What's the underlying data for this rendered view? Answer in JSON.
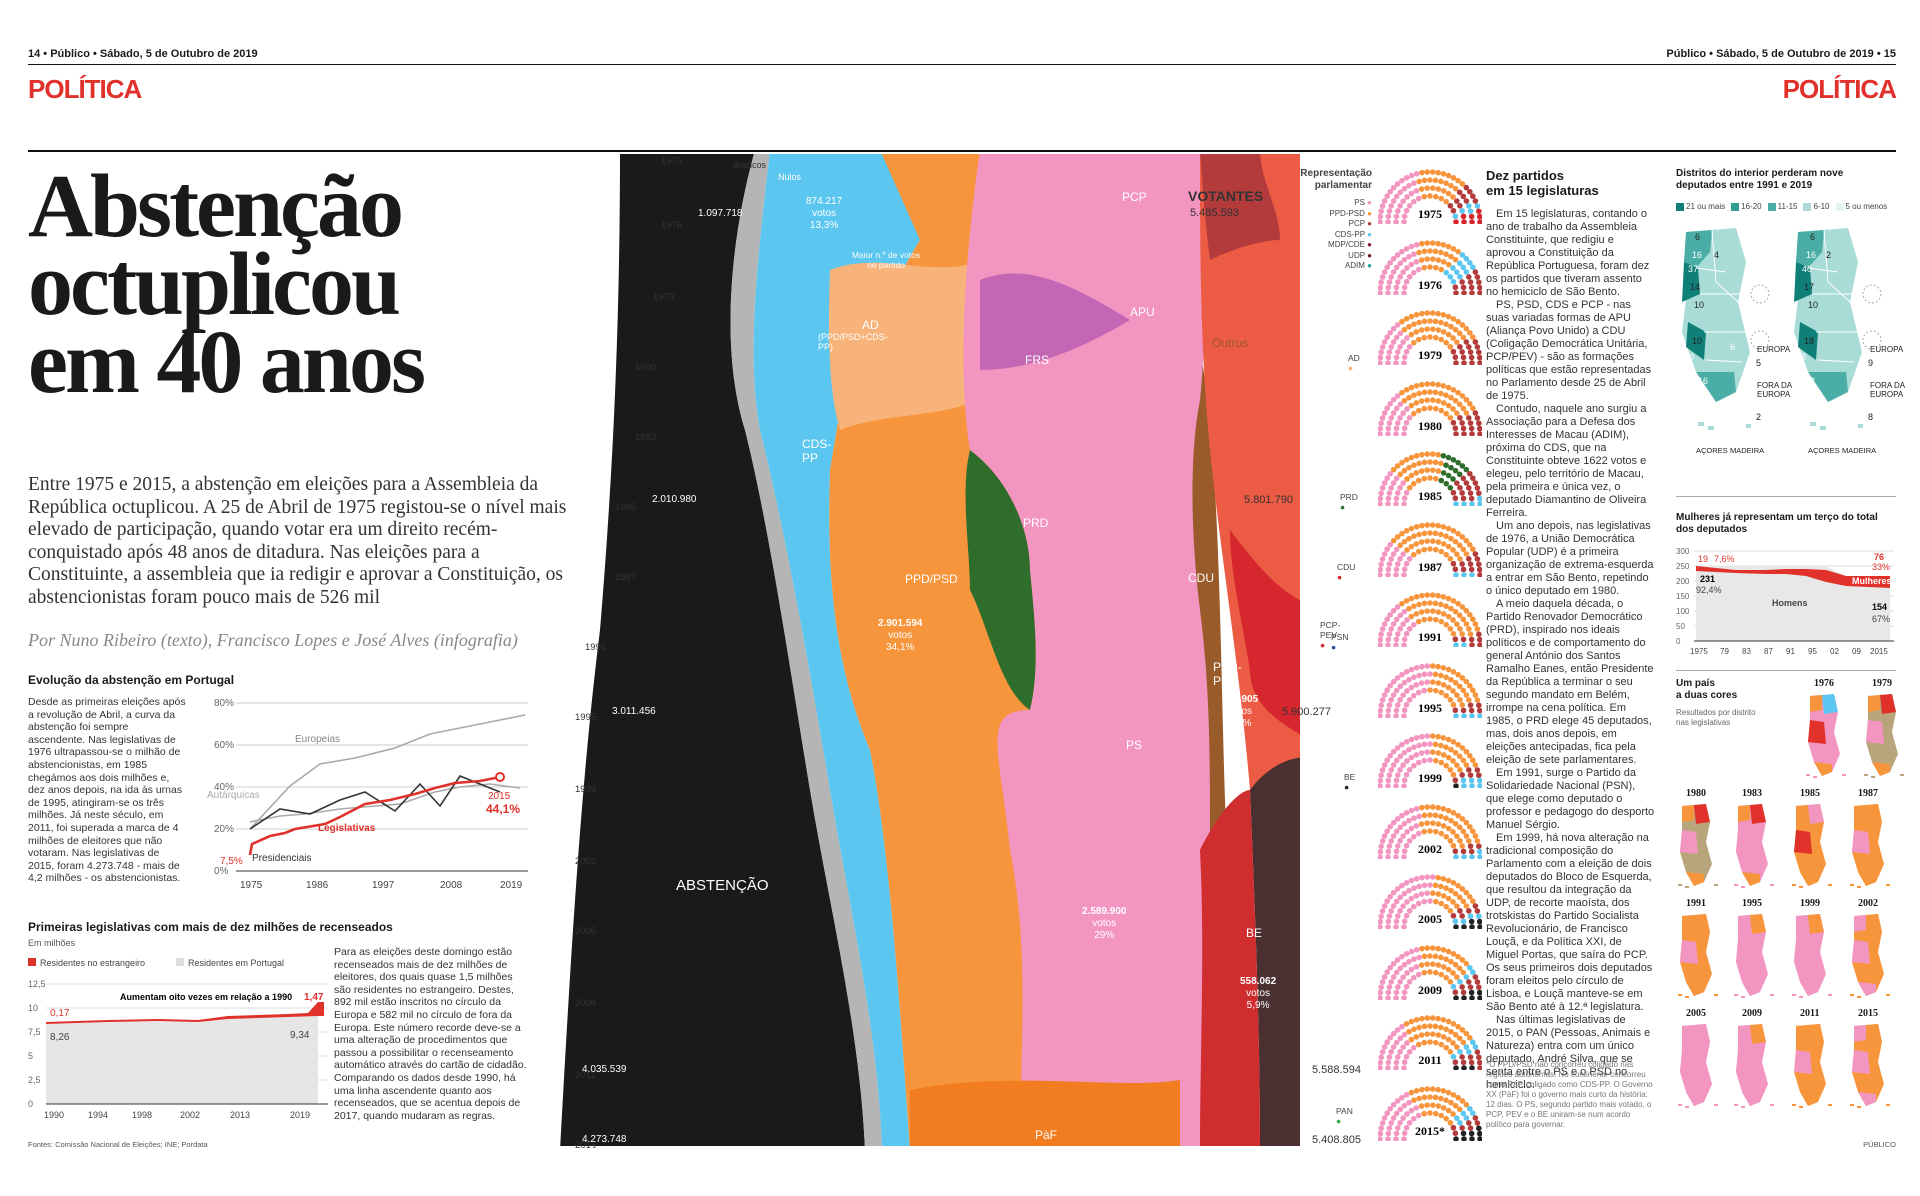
{
  "header": {
    "left": "14 • Público • Sábado, 5 de Outubro de 2019",
    "right": "Público • Sábado, 5 de Outubro de 2019 • 15",
    "section_left": "POLÍTICA",
    "section_right": "POLÍTICA"
  },
  "headline": {
    "line1": "Abstenção",
    "line2": "octuplicou",
    "line3": "em 40 anos"
  },
  "lead": "Entre 1975 e 2015, a abstenção em eleições para a Assembleia da República octuplicou. A 25 de Abril de 1975 registou-se o nível mais elevado de participação, quando votar era um direito recém-conquistado após 48 anos de ditadura. Nas eleições para a Constituinte, a assembleia que ia redigir e aprovar a Constituição, os abstencionistas foram pouco mais de 526 mil",
  "byline": "Por Nuno Ribeiro (texto), Francisco Lopes e José Alves (infografia)",
  "evolucao": {
    "title": "Evolução da abstenção em Portugal",
    "text": "Desde as primeiras eleições após a revolução de Abril, a curva da abstenção foi sempre ascendente. Nas legislativas de 1976 ultrapassou-se o milhão de abstencionistas, em 1985 chegámos aos dois milhões e, dez anos depois, na ida às urnas de 1995, atingiram-se os três milhões. Já neste século, em 2011, foi superada a marca de 4 milhões de eleitores que não votaram. Nas legislativas de 2015, foram 4.273.748 - mais de 4,2 milhões - os abstencionistas.",
    "yticks": [
      "80%",
      "60%",
      "40%",
      "20%",
      "0%"
    ],
    "xticks": [
      "1975",
      "1986",
      "1997",
      "2008",
      "2019"
    ],
    "labels": {
      "europeias": "Europeias",
      "autarquicas": "Autárquicas",
      "legislativas": "Legislativas",
      "presidenciais": "Presidenciais",
      "start": "7,5%",
      "end_year": "2015",
      "end": "44,1%"
    }
  },
  "recenseados": {
    "title": "Primeiras legislativas com mais de dez milhões de recenseados",
    "unit": "Em milhões",
    "legend_a": "Residentes no estrangeiro",
    "legend_b": "Residentes em Portugal",
    "note": "Aumentam oito vezes em relação a 1990",
    "yticks": [
      "12,5",
      "10",
      "7,5",
      "5",
      "2,5",
      "0"
    ],
    "xticks": [
      "1990",
      "1994",
      "1998",
      "2002",
      "2013",
      "2019"
    ],
    "v_start_ext": "0,17",
    "v_start_pt": "8,26",
    "v_end_ext": "1,47",
    "v_end_pt": "9,34",
    "text": "Para as eleições deste domingo estão recenseados mais de dez milhões de eleitores, dos quais quase 1,5 milhões são residentes no estrangeiro. Destes, 892 mil estão inscritos no círculo da Europa e 582 mil no círculo de fora da Europa. Este número recorde deve-se a uma alteração de procedimentos que passou a possibilitar o recenseamento automático através do cartão de cidadão. Comparando os dados desde 1990, há uma linha ascendente quanto aos recenseados, que se acentua depois de 2017, quando mudaram as regras."
  },
  "fontes": "Fontes: Comissão Nacional de Eleições; INE; Pordata",
  "stream": {
    "years": [
      "1975",
      "1976",
      "1979",
      "1980",
      "1983",
      "1985",
      "1987",
      "1991",
      "1995",
      "1999",
      "2002",
      "2005",
      "2009",
      "2011",
      "2015"
    ],
    "abst": [
      "1.097.718",
      "2.010.980",
      "3.011.456",
      "4.035.539",
      "4.273.748"
    ],
    "abst_last_pct": "44,1%",
    "votantes_title": "VOTANTES",
    "votantes": [
      "5.485.593",
      "5.801.790",
      "5.900.277",
      "5.588.594",
      "5.408.805"
    ],
    "brancos": "Brancos",
    "nulos": "Nulos",
    "abstencao": "ABSTENÇÃO",
    "parties": {
      "cdspp": "CDS-PP",
      "ad": "AD",
      "ad_sub": "(PPD/PSD+CDS-PP)",
      "frs": "FRS",
      "prd": "PRD",
      "ppdpsd": "PPD/PSD",
      "ps": "PS",
      "pcp": "PCP",
      "apu": "APU",
      "cdu": "CDU",
      "pcppev": "PCP-PEV",
      "be": "BE",
      "outros": "Outros",
      "paf": "PàF"
    },
    "ann1_v": "874.217",
    "ann1_u": "votos",
    "ann1_p": "13,3%",
    "ann1_note": "Maior n.º de votos no partido",
    "ann2_v": "2.901.594",
    "ann2_u": "votos",
    "ann2_p": "34,1%",
    "ann3_v": "2.589.900",
    "ann3_u": "votos",
    "ann3_p": "29%",
    "ann4_v": "505.905",
    "ann4_u": "votos",
    "ann4_p": "5,7%",
    "ann5_v": "558.062",
    "ann5_u": "votos",
    "ann5_p": "5,9%"
  },
  "hemi": {
    "title": "Representação parlamentar",
    "legend": [
      "PS",
      "PPD-PSD",
      "PCP",
      "CDS-PP",
      "MDP/CDE",
      "UDP",
      "ADIM"
    ],
    "years": [
      "1975",
      "1976",
      "1979",
      "1980",
      "1985",
      "1987",
      "1991",
      "1995",
      "1999",
      "2002",
      "2005",
      "2009",
      "2011",
      "2015*"
    ],
    "side": [
      "AD",
      "PRD",
      "CDU",
      "PCP-PEV",
      "PSN",
      "BE",
      "PAN"
    ]
  },
  "dez": {
    "title1": "Dez partidos",
    "title2": "em 15 legislaturas",
    "paras": [
      "Em 15 legislaturas, contando o ano de trabalho da Assembleia Constituinte, que redigiu e aprovou a Constituição da República Portuguesa, foram dez os partidos que tiveram assento no hemiciclo de São Bento.",
      "PS, PSD, CDS e PCP - nas suas variadas formas de APU (Aliança Povo Unido) a CDU (Coligação Democrática Unitária, PCP/PEV) - são as formações políticas que estão representadas no Parlamento desde 25 de Abril de 1975.",
      "Contudo, naquele ano surgiu a Associação para a Defesa dos Interesses de Macau (ADIM), próxima do CDS, que na Constituinte obteve 1622 votos e elegeu, pelo território de Macau, pela primeira e única vez, o deputado Diamantino de Oliveira Ferreira.",
      "Um ano depois, nas legislativas de 1976, a União Democrática Popular (UDP) é a primeira organização de extrema-esquerda a entrar em São Bento, repetindo o único deputado em 1980.",
      "A meio daquela década, o Partido Renovador Democrático (PRD), inspirado nos ideais políticos e de comportamento do general António dos Santos Ramalho Eanes, então Presidente da República a terminar o seu segundo mandato em Belém, irrompe na cena política. Em 1985, o PRD elege 45 deputados, mas, dois anos depois, em eleições antecipadas, fica pela eleição de sete parlamentares.",
      "Em 1991, surge o Partido da Solidariedade Nacional (PSN), que elege como deputado o professor e pedagogo do desporto Manuel Sérgio.",
      "Em 1999, há nova alteração na tradicional composição do Parlamento com a eleição de dois deputados do Bloco de Esquerda, que resultou da integração da UDP, de recorte maoísta, dos trotskistas do Partido Socialista Revolucionário, de Francisco Louçã, e da Política XXI, de Miguel Portas, que saíra do PCP. Os seus primeiros dois deputados foram eleitos pelo círculo de Lisboa, e Louçã manteve-se em São Bento até à 12.ª legislatura.",
      "Nas últimas legislativas de 2015, o PAN (Pessoas, Animais e Natureza) entra com um único deputado, André Silva, que se senta entre o PS e o PSD no hemiciclo."
    ],
    "footnote": "*O PPD/PSD não concorreu coligado nas regiões autónomas. No continente concorreu como PàF, coligado como CDS-PP. O Governo XX (PàF) foi o governo mais curto da história: 12 dias. O PS, segundo partido mais votado, o PCP, PEV e o BE uniram-se num acordo político para governar."
  },
  "distritos": {
    "title": "Distritos do interior perderam nove deputados entre 1991 e 2019",
    "legend": [
      "21 ou mais",
      "16-20",
      "11-15",
      "6-10",
      "5 ou menos"
    ],
    "europa": "EUROPA",
    "fora": "FORA DA EUROPA",
    "acores": "AÇORES",
    "madeira": "MADEIRA",
    "m1": [
      "6",
      "16",
      "37",
      "14",
      "10",
      "10",
      "50",
      "6",
      "16",
      "4",
      "2",
      "5",
      "3",
      "3",
      "4",
      "3",
      "4",
      "3",
      "2",
      "2",
      "5",
      "3",
      "9",
      "2",
      "5",
      "6"
    ],
    "m2": [
      "6",
      "16",
      "40",
      "17",
      "10",
      "18",
      "48",
      "2",
      "3",
      "9",
      "8",
      "5",
      "3",
      "4",
      "3",
      "4",
      "2",
      "3",
      "9",
      "2",
      "2",
      "5",
      "6",
      "3"
    ]
  },
  "mulheres": {
    "title": "Mulheres já representam um terço do total dos deputados",
    "yticks": [
      "300",
      "250",
      "200",
      "150",
      "100",
      "50",
      "0"
    ],
    "xticks": [
      "1975",
      "79",
      "83",
      "87",
      "91",
      "95",
      "02",
      "09",
      "2015"
    ],
    "v19": "19",
    "v76p": "7,6%",
    "v231": "231",
    "v92": "92,4%",
    "homens": "Homens",
    "mulheres": "Mulheres",
    "v76": "76",
    "v33": "33%",
    "v154": "154",
    "v67": "67%"
  },
  "cores": {
    "title1": "Um país",
    "title2": "a duas cores",
    "sub": "Resultados por distrito nas legislativas",
    "years": [
      "1976",
      "1979",
      "1980",
      "1983",
      "1985",
      "1987",
      "1991",
      "1995",
      "1999",
      "2002",
      "2005",
      "2009",
      "2011",
      "2015"
    ]
  },
  "credit": "PÚBLICO"
}
